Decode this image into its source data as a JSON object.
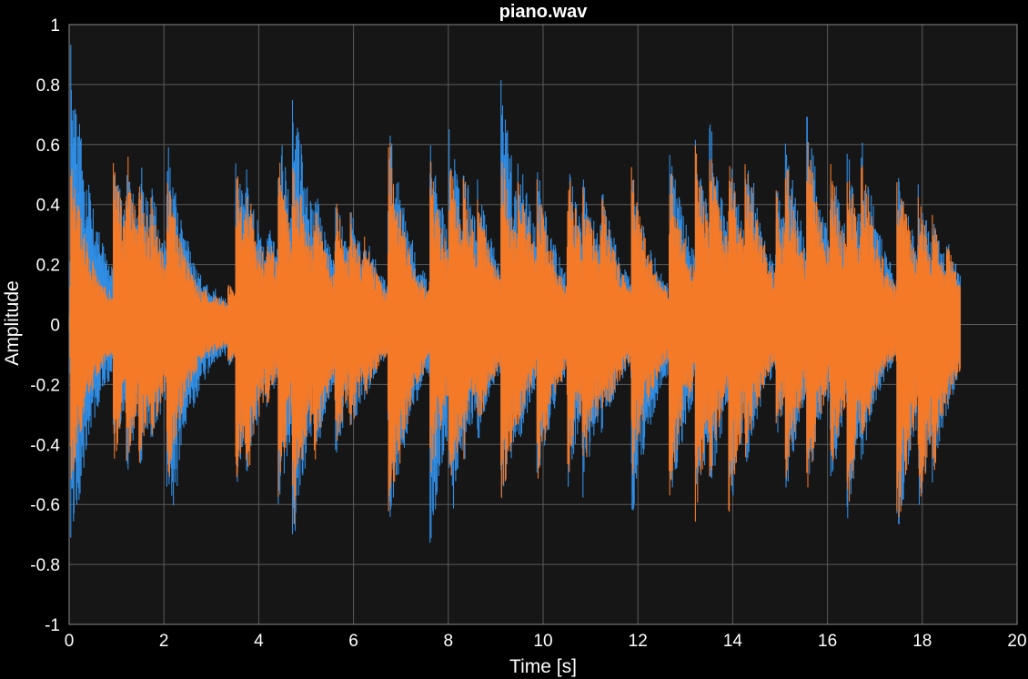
{
  "chart_data": {
    "type": "line",
    "title": "piano.wav",
    "xlabel": "Time [s]",
    "ylabel": "Amplitude",
    "xlim": [
      0,
      20
    ],
    "ylim": [
      -1,
      1
    ],
    "x_ticks": [
      0,
      2,
      4,
      6,
      8,
      10,
      12,
      14,
      16,
      18,
      20
    ],
    "y_ticks": [
      1,
      0.8,
      0.6,
      0.4,
      0.2,
      0,
      -0.2,
      -0.4,
      -0.6,
      -0.8,
      -1
    ],
    "x_tick_labels": [
      "0",
      "2",
      "4",
      "6",
      "8",
      "10",
      "12",
      "14",
      "16",
      "18",
      "20"
    ],
    "y_tick_labels": [
      "1",
      "0.8",
      "0.6",
      "0.4",
      "0.2",
      "0",
      "-0.2",
      "-0.4",
      "-0.6",
      "-0.8",
      "-1"
    ],
    "grid": true,
    "background_color": "#000000",
    "axes_color": "#161616",
    "grid_color": "#5a5a5a",
    "series": [
      {
        "color": "#2f8de4",
        "duration_s": 18.8,
        "onsets_s": [
          0.02,
          0.92,
          1.19,
          1.46,
          1.71,
          2.05,
          2.33,
          3.02,
          3.34,
          3.5,
          3.7,
          4.15,
          4.4,
          4.7,
          5.15,
          5.6,
          5.9,
          6.2,
          6.72,
          7.05,
          7.6,
          8.0,
          8.3,
          8.6,
          9.1,
          9.45,
          9.86,
          10.5,
          10.82,
          11.2,
          11.4,
          11.85,
          12.2,
          12.65,
          13.2,
          13.5,
          13.9,
          14.25,
          14.9,
          15.1,
          15.55,
          16.05,
          16.4,
          16.7,
          17.45,
          17.9,
          18.2,
          18.5
        ],
        "peaks_pos": [
          0.96,
          0.62,
          0.65,
          0.6,
          0.5,
          0.65,
          0.3,
          0.1,
          0.15,
          0.6,
          0.58,
          0.4,
          0.72,
          0.86,
          0.5,
          0.45,
          0.42,
          0.35,
          0.75,
          0.15,
          0.65,
          0.72,
          0.58,
          0.5,
          0.86,
          0.65,
          0.55,
          0.6,
          0.55,
          0.5,
          0.3,
          0.55,
          0.3,
          0.65,
          0.65,
          0.72,
          0.62,
          0.68,
          0.5,
          0.65,
          0.75,
          0.6,
          0.62,
          0.65,
          0.6,
          0.5,
          0.38,
          0.3
        ],
        "peaks_neg": [
          0.86,
          0.45,
          0.55,
          0.52,
          0.45,
          0.82,
          0.25,
          0.1,
          0.15,
          0.58,
          0.55,
          0.3,
          0.65,
          0.8,
          0.5,
          0.48,
          0.42,
          0.28,
          0.8,
          0.15,
          0.78,
          0.75,
          0.5,
          0.42,
          0.68,
          0.45,
          0.58,
          0.58,
          0.6,
          0.4,
          0.3,
          0.72,
          0.3,
          0.68,
          0.72,
          0.6,
          0.7,
          0.52,
          0.4,
          0.6,
          0.6,
          0.58,
          0.7,
          0.48,
          0.78,
          0.7,
          0.55,
          0.25
        ]
      },
      {
        "color": "#f47a28",
        "duration_s": 18.8,
        "onsets_s": [
          0.02,
          0.92,
          1.19,
          1.46,
          1.71,
          2.05,
          2.33,
          3.02,
          3.34,
          3.5,
          3.7,
          4.15,
          4.4,
          4.7,
          5.15,
          5.6,
          5.9,
          6.2,
          6.72,
          7.05,
          7.6,
          8.0,
          8.3,
          8.6,
          9.1,
          9.45,
          9.86,
          10.5,
          10.82,
          11.2,
          11.4,
          11.85,
          12.2,
          12.65,
          13.2,
          13.5,
          13.9,
          14.25,
          14.9,
          15.1,
          15.55,
          16.05,
          16.4,
          16.7,
          17.45,
          17.9,
          18.2,
          18.5
        ],
        "peaks_pos": [
          0.58,
          0.62,
          0.65,
          0.55,
          0.45,
          0.55,
          0.25,
          0.1,
          0.15,
          0.58,
          0.55,
          0.35,
          0.6,
          0.65,
          0.45,
          0.45,
          0.4,
          0.32,
          0.68,
          0.12,
          0.58,
          0.6,
          0.55,
          0.45,
          0.65,
          0.6,
          0.5,
          0.58,
          0.52,
          0.48,
          0.28,
          0.55,
          0.25,
          0.6,
          0.62,
          0.65,
          0.6,
          0.65,
          0.48,
          0.6,
          0.68,
          0.58,
          0.6,
          0.6,
          0.58,
          0.48,
          0.38,
          0.3
        ],
        "peaks_neg": [
          0.6,
          0.52,
          0.52,
          0.5,
          0.42,
          0.6,
          0.22,
          0.1,
          0.15,
          0.55,
          0.6,
          0.3,
          0.6,
          0.78,
          0.5,
          0.45,
          0.4,
          0.28,
          0.8,
          0.15,
          0.58,
          0.65,
          0.48,
          0.4,
          0.68,
          0.4,
          0.58,
          0.55,
          0.58,
          0.38,
          0.3,
          0.55,
          0.3,
          0.62,
          0.68,
          0.55,
          0.68,
          0.5,
          0.4,
          0.58,
          0.6,
          0.55,
          0.68,
          0.45,
          0.78,
          0.7,
          0.55,
          0.25
        ]
      }
    ]
  }
}
